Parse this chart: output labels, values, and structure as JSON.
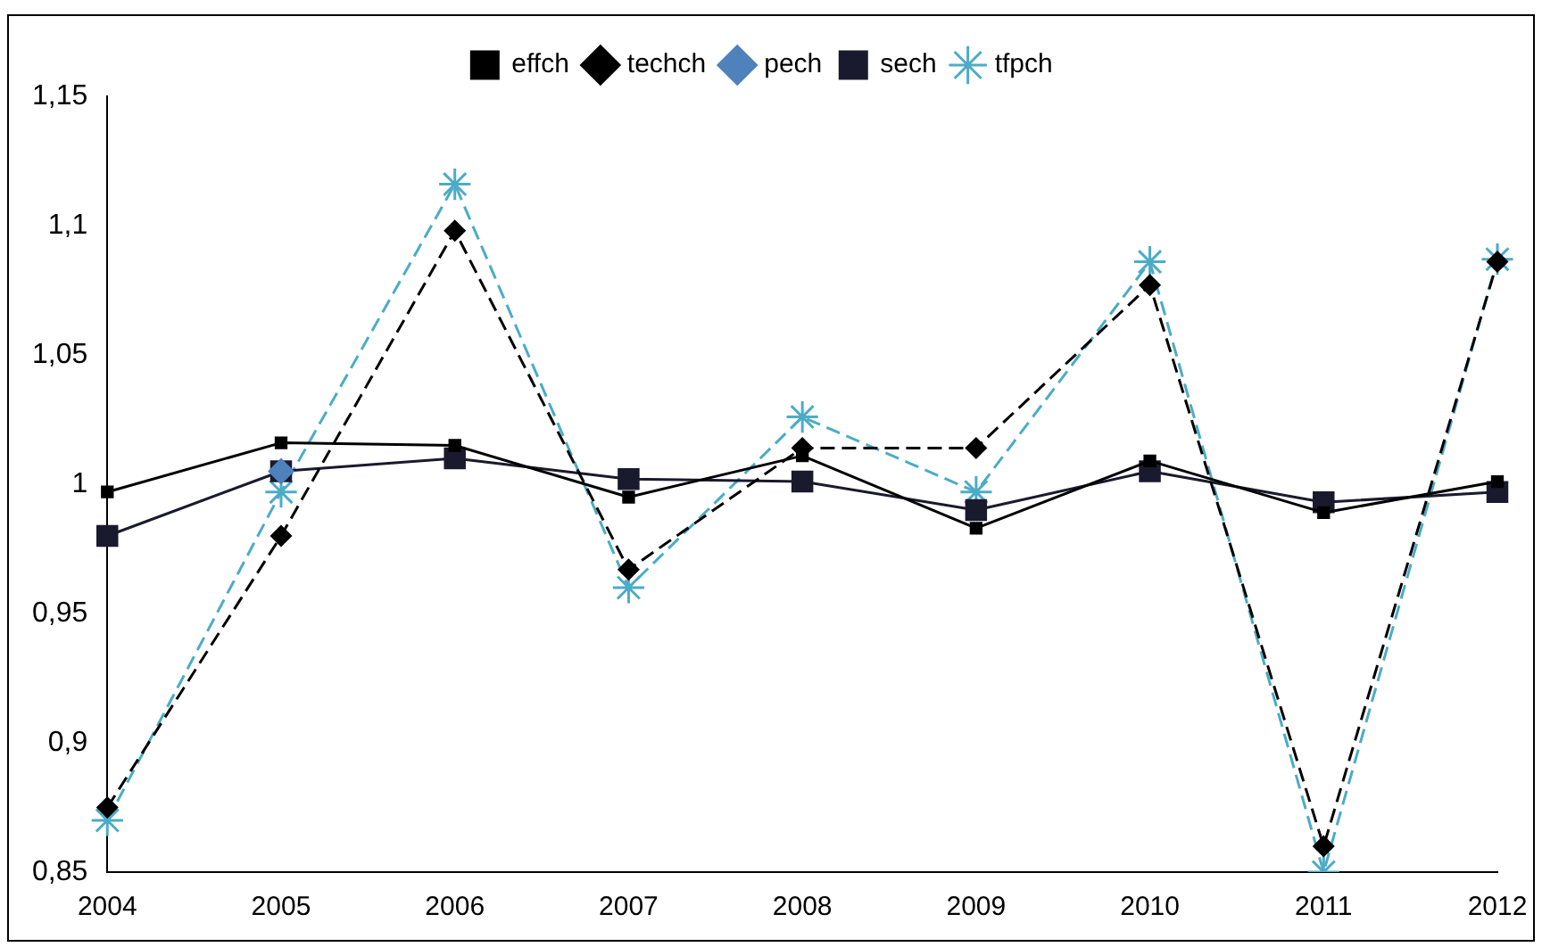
{
  "chart_data": {
    "type": "line",
    "categories": [
      "2004",
      "2005",
      "2006",
      "2007",
      "2008",
      "2009",
      "2010",
      "2011",
      "2012"
    ],
    "series": [
      {
        "name": "effch",
        "color": "#000000",
        "marker": "square",
        "line_style": "solid",
        "values": [
          0.997,
          1.016,
          1.015,
          0.995,
          1.011,
          0.983,
          1.009,
          0.989,
          1.001
        ]
      },
      {
        "name": "techch",
        "color": "#000000",
        "marker": "diamond",
        "line_style": "dashed",
        "values": [
          0.875,
          0.98,
          1.098,
          0.967,
          1.014,
          1.014,
          1.077,
          0.86,
          1.086
        ]
      },
      {
        "name": "pech",
        "color": "#4f81bd",
        "marker": "diamond",
        "line_style": "dotted",
        "values": [
          null,
          1.005,
          null,
          null,
          null,
          null,
          null,
          null,
          null
        ]
      },
      {
        "name": "sech",
        "color": "#1a1a2e",
        "marker": "square",
        "line_style": "solid",
        "values": [
          0.98,
          1.005,
          1.01,
          1.002,
          1.001,
          0.99,
          1.005,
          0.993,
          0.997
        ]
      },
      {
        "name": "tfpch",
        "color": "#4bacc6",
        "marker": "cross",
        "line_style": "dashed",
        "values": [
          0.87,
          0.997,
          1.116,
          0.96,
          1.026,
          0.997,
          1.086,
          0.85,
          1.087
        ]
      }
    ],
    "ylim": [
      0.85,
      1.15
    ],
    "yticks": [
      {
        "value": 0.85,
        "label": "0,85"
      },
      {
        "value": 0.9,
        "label": "0,9"
      },
      {
        "value": 0.95,
        "label": "0,95"
      },
      {
        "value": 1,
        "label": "1"
      },
      {
        "value": 1.05,
        "label": "1,05"
      },
      {
        "value": 1.1,
        "label": "1,1"
      },
      {
        "value": 1.15,
        "label": "1,15"
      }
    ],
    "grid": false,
    "legend": "top"
  }
}
